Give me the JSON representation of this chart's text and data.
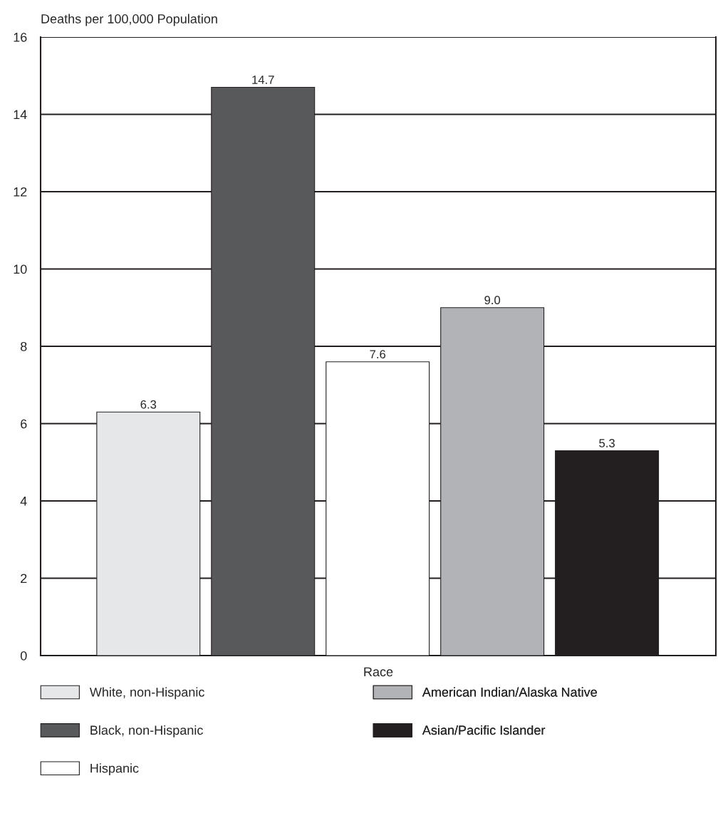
{
  "chart_data": {
    "type": "bar",
    "ylabel": "Deaths per 100,000 Population",
    "xlabel": "Race",
    "categories": [
      null,
      null,
      null,
      null,
      null
    ],
    "series": [
      {
        "name": "White, non-Hispanic",
        "color": "#e6e7e8",
        "values": [
          6.3,
          null,
          null,
          null,
          null
        ]
      },
      {
        "name": "Black, non-Hispanic",
        "color": "#58595b",
        "values": [
          null,
          14.7,
          null,
          null,
          null
        ]
      },
      {
        "name": "Hispanic",
        "color": "#ffffff",
        "values": [
          null,
          null,
          7.6,
          null,
          null
        ]
      },
      {
        "name": "American Indian/Alaska Native",
        "color": "#b1b3b6",
        "values": [
          null,
          null,
          null,
          9.0,
          null
        ]
      },
      {
        "name": "Asian/Pacific Islander",
        "color": "#231f20",
        "values": [
          null,
          null,
          null,
          null,
          5.3
        ]
      }
    ],
    "value_labels": [
      "6.3",
      "14.7",
      "7.6",
      "9.0",
      "5.3"
    ],
    "ylim": [
      0,
      16
    ],
    "yticks": [
      0,
      2,
      4,
      6,
      8,
      10,
      12,
      14,
      16
    ],
    "grid": "y",
    "legend": "bottom"
  }
}
